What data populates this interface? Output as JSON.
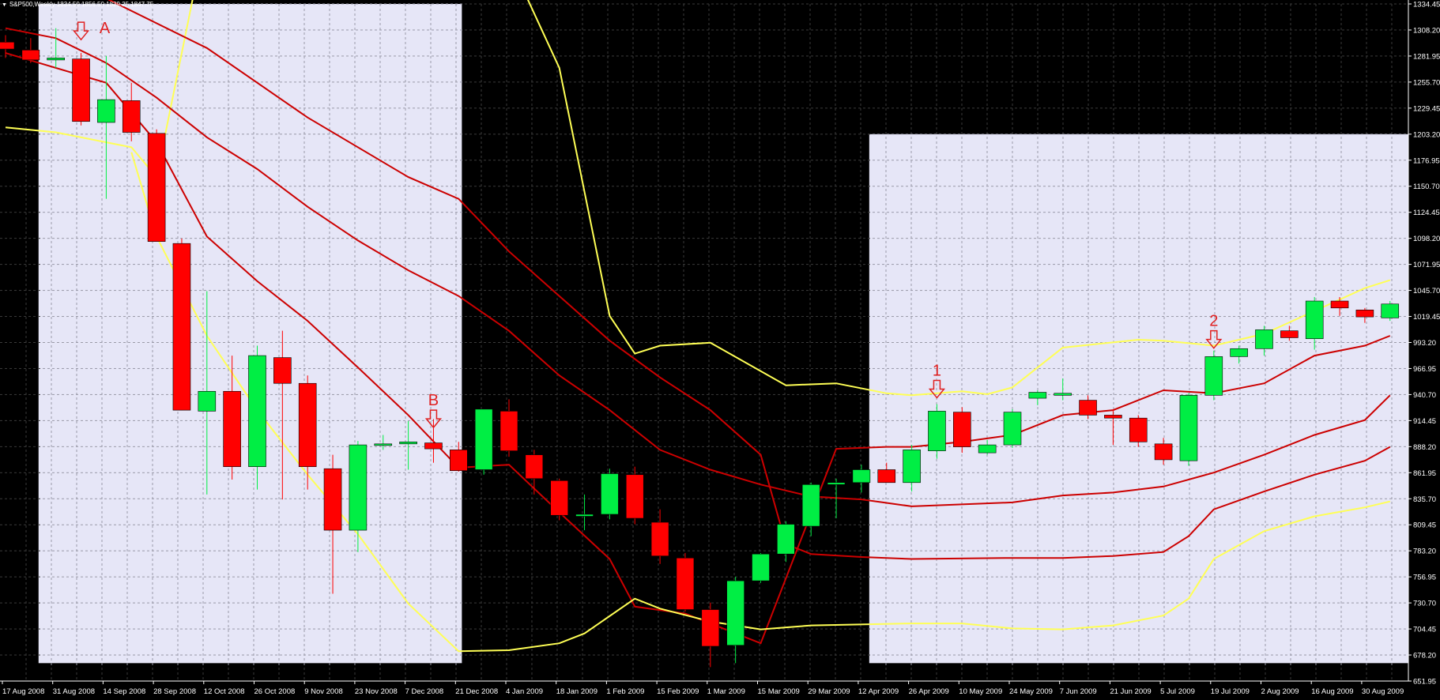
{
  "header": {
    "symbol": "S&P500,Weekly",
    "ohlc": "1834.50 1856.50 1829.25 1847.75"
  },
  "chart_data": {
    "type": "candlestick",
    "title": "S&P500,Weekly",
    "ylim": [
      651.95,
      1334.45
    ],
    "grid": true,
    "y_ticks": [
      "1334.45",
      "1308.20",
      "1281.95",
      "1255.70",
      "1229.45",
      "1203.20",
      "1176.95",
      "1150.70",
      "1124.45",
      "1098.20",
      "1071.95",
      "1045.70",
      "1019.45",
      "993.20",
      "966.95",
      "940.70",
      "914.45",
      "888.20",
      "861.95",
      "835.70",
      "809.45",
      "783.20",
      "756.95",
      "730.70",
      "704.45",
      "678.20",
      "651.95"
    ],
    "x_labels": [
      {
        "i": 0,
        "label": "17 Aug 2008"
      },
      {
        "i": 2,
        "label": "31 Aug 2008"
      },
      {
        "i": 4,
        "label": "14 Sep 2008"
      },
      {
        "i": 6,
        "label": "28 Sep 2008"
      },
      {
        "i": 8,
        "label": "12 Oct 2008"
      },
      {
        "i": 10,
        "label": "26 Oct 2008"
      },
      {
        "i": 12,
        "label": "9 Nov 2008"
      },
      {
        "i": 14,
        "label": "23 Nov 2008"
      },
      {
        "i": 16,
        "label": "7 Dec 2008"
      },
      {
        "i": 18,
        "label": "21 Dec 2008"
      },
      {
        "i": 20,
        "label": "4 Jan 2009"
      },
      {
        "i": 22,
        "label": "18 Jan 2009"
      },
      {
        "i": 24,
        "label": "1 Feb 2009"
      },
      {
        "i": 26,
        "label": "15 Feb 2009"
      },
      {
        "i": 28,
        "label": "1 Mar 2009"
      },
      {
        "i": 30,
        "label": "15 Mar 2009"
      },
      {
        "i": 32,
        "label": "29 Mar 2009"
      },
      {
        "i": 34,
        "label": "12 Apr 2009"
      },
      {
        "i": 36,
        "label": "26 Apr 2009"
      },
      {
        "i": 38,
        "label": "10 May 2009"
      },
      {
        "i": 40,
        "label": "24 May 2009"
      },
      {
        "i": 42,
        "label": "7 Jun 2009"
      },
      {
        "i": 44,
        "label": "21 Jun 2009"
      },
      {
        "i": 46,
        "label": "5 Jul 2009"
      },
      {
        "i": 48,
        "label": "19 Jul 2009"
      },
      {
        "i": 50,
        "label": "2 Aug 2009"
      },
      {
        "i": 52,
        "label": "16 Aug 2009"
      },
      {
        "i": 54,
        "label": "30 Aug 2009"
      }
    ],
    "candles": [
      {
        "o": 1296,
        "h": 1303,
        "l": 1280,
        "c": 1289
      },
      {
        "o": 1288,
        "h": 1300,
        "l": 1275,
        "c": 1278
      },
      {
        "o": 1278,
        "h": 1310,
        "l": 1270,
        "c": 1280
      },
      {
        "o": 1279,
        "h": 1285,
        "l": 1212,
        "c": 1216
      },
      {
        "o": 1215,
        "h": 1282,
        "l": 1138,
        "c": 1238
      },
      {
        "o": 1237,
        "h": 1255,
        "l": 1196,
        "c": 1205
      },
      {
        "o": 1204,
        "h": 1208,
        "l": 1095,
        "c": 1095
      },
      {
        "o": 1093,
        "h": 1098,
        "l": 925,
        "c": 925
      },
      {
        "o": 924,
        "h": 1045,
        "l": 840,
        "c": 944
      },
      {
        "o": 944,
        "h": 980,
        "l": 855,
        "c": 868
      },
      {
        "o": 868,
        "h": 990,
        "l": 845,
        "c": 980
      },
      {
        "o": 978,
        "h": 1005,
        "l": 835,
        "c": 952
      },
      {
        "o": 952,
        "h": 960,
        "l": 845,
        "c": 868
      },
      {
        "o": 866,
        "h": 880,
        "l": 740,
        "c": 804
      },
      {
        "o": 804,
        "h": 894,
        "l": 782,
        "c": 890
      },
      {
        "o": 890,
        "h": 900,
        "l": 885,
        "c": 891
      },
      {
        "o": 891,
        "h": 914,
        "l": 865,
        "c": 893
      },
      {
        "o": 892,
        "h": 916,
        "l": 872,
        "c": 886
      },
      {
        "o": 885,
        "h": 893,
        "l": 863,
        "c": 864
      },
      {
        "o": 865,
        "h": 926,
        "l": 860,
        "c": 926
      },
      {
        "o": 924,
        "h": 936,
        "l": 878,
        "c": 884
      },
      {
        "o": 880,
        "h": 885,
        "l": 840,
        "c": 856
      },
      {
        "o": 854,
        "h": 856,
        "l": 814,
        "c": 819
      },
      {
        "o": 818,
        "h": 840,
        "l": 804,
        "c": 820
      },
      {
        "o": 820,
        "h": 866,
        "l": 815,
        "c": 861
      },
      {
        "o": 860,
        "h": 868,
        "l": 810,
        "c": 816
      },
      {
        "o": 812,
        "h": 825,
        "l": 770,
        "c": 778
      },
      {
        "o": 776,
        "h": 781,
        "l": 722,
        "c": 724
      },
      {
        "o": 724,
        "h": 731,
        "l": 666,
        "c": 687
      },
      {
        "o": 688,
        "h": 757,
        "l": 670,
        "c": 753
      },
      {
        "o": 753,
        "h": 781,
        "l": 751,
        "c": 780
      },
      {
        "o": 780,
        "h": 813,
        "l": 772,
        "c": 810
      },
      {
        "o": 808,
        "h": 852,
        "l": 798,
        "c": 850
      },
      {
        "o": 850,
        "h": 856,
        "l": 816,
        "c": 852
      },
      {
        "o": 852,
        "h": 870,
        "l": 842,
        "c": 865
      },
      {
        "o": 865,
        "h": 872,
        "l": 852,
        "c": 852
      },
      {
        "o": 852,
        "h": 890,
        "l": 843,
        "c": 885
      },
      {
        "o": 884,
        "h": 931,
        "l": 876,
        "c": 924
      },
      {
        "o": 923,
        "h": 928,
        "l": 882,
        "c": 888
      },
      {
        "o": 882,
        "h": 895,
        "l": 880,
        "c": 890
      },
      {
        "o": 890,
        "h": 926,
        "l": 887,
        "c": 923
      },
      {
        "o": 937,
        "h": 945,
        "l": 930,
        "c": 943
      },
      {
        "o": 940,
        "h": 957,
        "l": 935,
        "c": 942
      },
      {
        "o": 935,
        "h": 940,
        "l": 916,
        "c": 920
      },
      {
        "o": 920,
        "h": 926,
        "l": 890,
        "c": 917
      },
      {
        "o": 917,
        "h": 920,
        "l": 888,
        "c": 893
      },
      {
        "o": 891,
        "h": 897,
        "l": 870,
        "c": 875
      },
      {
        "o": 874,
        "h": 942,
        "l": 869,
        "c": 940
      },
      {
        "o": 940,
        "h": 985,
        "l": 935,
        "c": 979
      },
      {
        "o": 979,
        "h": 990,
        "l": 972,
        "c": 987
      },
      {
        "o": 987,
        "h": 1010,
        "l": 980,
        "c": 1006
      },
      {
        "o": 1005,
        "h": 1010,
        "l": 995,
        "c": 998
      },
      {
        "o": 997,
        "h": 1039,
        "l": 986,
        "c": 1035
      },
      {
        "o": 1035,
        "h": 1039,
        "l": 1020,
        "c": 1028
      },
      {
        "o": 1026,
        "h": 1028,
        "l": 1013,
        "c": 1019
      },
      {
        "o": 1018,
        "h": 1035,
        "l": 1015,
        "c": 1032
      }
    ],
    "bands": {
      "upper_yellow": [
        [
          0,
          1210
        ],
        [
          2,
          1205
        ],
        [
          4,
          1195
        ],
        [
          5,
          1190
        ],
        [
          6,
          1160
        ],
        [
          8,
          1410
        ],
        [
          18,
          1450
        ],
        [
          20,
          1380
        ],
        [
          22,
          1270
        ],
        [
          24,
          1020
        ],
        [
          25,
          982
        ],
        [
          26,
          990
        ],
        [
          28,
          993
        ],
        [
          31,
          950
        ],
        [
          33,
          952
        ],
        [
          35,
          942
        ],
        [
          36,
          940
        ],
        [
          38,
          944
        ],
        [
          39,
          941
        ],
        [
          40,
          948
        ],
        [
          42,
          988
        ],
        [
          45,
          996
        ],
        [
          46,
          995
        ],
        [
          48,
          990
        ],
        [
          50,
          1002
        ],
        [
          52,
          1025
        ],
        [
          54,
          1048
        ],
        [
          55,
          1056
        ]
      ],
      "upper_red": [
        [
          0,
          1285
        ],
        [
          4,
          1255
        ],
        [
          6,
          1195
        ],
        [
          8,
          1100
        ],
        [
          10,
          1055
        ],
        [
          12,
          1015
        ],
        [
          14,
          968
        ],
        [
          16,
          920
        ],
        [
          18,
          867
        ],
        [
          20,
          870
        ],
        [
          22,
          822
        ],
        [
          24,
          775
        ],
        [
          25,
          727
        ],
        [
          27,
          720
        ],
        [
          28,
          710
        ],
        [
          30,
          690
        ],
        [
          33,
          886
        ],
        [
          35,
          888
        ],
        [
          36,
          888
        ],
        [
          38,
          893
        ],
        [
          40,
          900
        ],
        [
          42,
          920
        ],
        [
          44,
          925
        ],
        [
          46,
          945
        ],
        [
          48,
          942
        ],
        [
          50,
          952
        ],
        [
          52,
          980
        ],
        [
          54,
          990
        ],
        [
          55,
          1000
        ]
      ],
      "middle_red": [
        [
          0,
          1310
        ],
        [
          2,
          1300
        ],
        [
          4,
          1275
        ],
        [
          6,
          1240
        ],
        [
          8,
          1200
        ],
        [
          10,
          1168
        ],
        [
          12,
          1130
        ],
        [
          14,
          1096
        ],
        [
          16,
          1066
        ],
        [
          18,
          1040
        ],
        [
          20,
          1005
        ],
        [
          22,
          960
        ],
        [
          24,
          925
        ],
        [
          26,
          885
        ],
        [
          28,
          865
        ],
        [
          30,
          850
        ],
        [
          32,
          838
        ],
        [
          34,
          835
        ],
        [
          36,
          828
        ],
        [
          40,
          832
        ],
        [
          42,
          839
        ],
        [
          44,
          842
        ],
        [
          46,
          848
        ],
        [
          48,
          862
        ],
        [
          50,
          880
        ],
        [
          52,
          900
        ],
        [
          54,
          915
        ],
        [
          55,
          940
        ]
      ],
      "lower_red": [
        [
          0,
          1380
        ],
        [
          4,
          1340
        ],
        [
          8,
          1290
        ],
        [
          12,
          1220
        ],
        [
          16,
          1160
        ],
        [
          18,
          1138
        ],
        [
          20,
          1085
        ],
        [
          22,
          1040
        ],
        [
          24,
          995
        ],
        [
          26,
          958
        ],
        [
          28,
          925
        ],
        [
          30,
          880
        ],
        [
          31,
          790
        ],
        [
          32,
          780
        ],
        [
          34,
          777
        ],
        [
          36,
          775
        ],
        [
          40,
          776
        ],
        [
          42,
          776
        ],
        [
          44,
          778
        ],
        [
          46,
          782
        ],
        [
          47,
          798
        ],
        [
          48,
          825
        ],
        [
          50,
          843
        ],
        [
          52,
          860
        ],
        [
          54,
          874
        ],
        [
          55,
          888
        ]
      ],
      "lower_yellow": [
        [
          5,
          1185
        ],
        [
          6,
          1100
        ],
        [
          8,
          1000
        ],
        [
          10,
          925
        ],
        [
          12,
          860
        ],
        [
          14,
          800
        ],
        [
          16,
          730
        ],
        [
          18,
          682
        ],
        [
          20,
          683
        ],
        [
          22,
          690
        ],
        [
          23,
          700
        ],
        [
          25,
          735
        ],
        [
          26,
          725
        ],
        [
          28,
          712
        ],
        [
          30,
          704
        ],
        [
          32,
          708
        ],
        [
          36,
          710
        ],
        [
          38,
          710
        ],
        [
          40,
          705
        ],
        [
          42,
          704
        ],
        [
          44,
          708
        ],
        [
          46,
          718
        ],
        [
          47,
          735
        ],
        [
          48,
          775
        ],
        [
          50,
          803
        ],
        [
          52,
          818
        ],
        [
          54,
          827
        ],
        [
          55,
          833
        ]
      ]
    },
    "highlight_regions": [
      {
        "from_i": 2,
        "to_i": 17,
        "top": 1334.45,
        "bottom": 670
      },
      {
        "from_i": 35,
        "to_i": 55,
        "top": 1203.2,
        "bottom": 670
      }
    ],
    "annotations": [
      {
        "label": "A",
        "i": 3,
        "value": 1316
      },
      {
        "label": "B",
        "i": 17,
        "value": 925
      },
      {
        "label": "1",
        "i": 37,
        "value": 955
      },
      {
        "label": "2",
        "i": 48,
        "value": 1005
      }
    ]
  },
  "colors": {
    "background": "#000000",
    "highlight": "#e6e6f7",
    "bull": "#00ee44",
    "bear": "#ff0000",
    "band_yellow": "#ffff55",
    "band_red": "#cc0000",
    "grid_dark": "#3a3a3a",
    "grid_light": "#9a9aa8",
    "axis_text": "#ffffff",
    "annotation": "#e02020"
  }
}
